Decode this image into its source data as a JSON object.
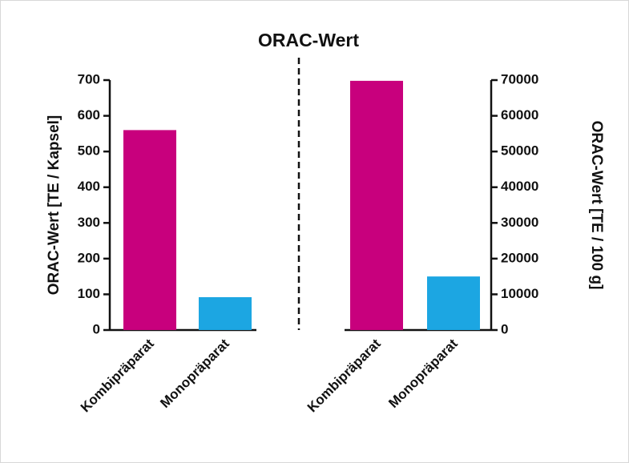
{
  "chart_data": {
    "type": "bar",
    "title": "ORAC-Wert",
    "ylabel": "ORAC-Wert [TE / Kapsel]",
    "y2label": "ORAC-Wert [TE / 100 g]",
    "categories": [
      "Kombipräparat",
      "Monopräparat",
      "Kombipräparat",
      "Monopräparat"
    ],
    "values": [
      560,
      92,
      69800,
      15000
    ],
    "axes": [
      "y",
      "y",
      "y2",
      "y2"
    ],
    "colors": [
      "#c8007d",
      "#1ca6e2",
      "#c8007d",
      "#1ca6e2"
    ],
    "ylim": [
      0,
      700
    ],
    "yticks": [
      0,
      100,
      200,
      300,
      400,
      500,
      600,
      700
    ],
    "y2lim": [
      0,
      70000
    ],
    "y2ticks": [
      0,
      10000,
      20000,
      30000,
      40000,
      50000,
      60000,
      70000
    ]
  }
}
